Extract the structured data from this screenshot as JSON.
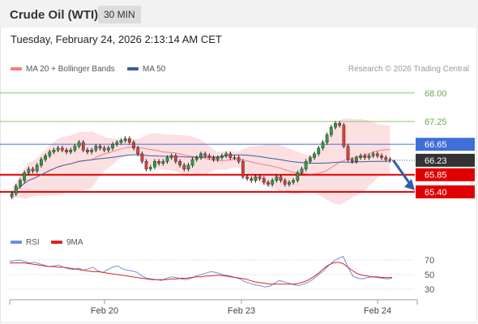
{
  "header": {
    "title": "Crude Oil (WTI)",
    "timeframe": "30 MIN",
    "timestamp": "Tuesday, February 24, 2026 2:13:14 AM CET"
  },
  "legend": {
    "ma20_label": "MA 20 + Bollinger Bands",
    "ma20_color": "#f08080",
    "ma50_label": "MA 50",
    "ma50_color": "#3b5f9e",
    "copyright": "Research © 2026 Trading Central"
  },
  "rsi_legend": {
    "rsi_label": "RSI",
    "rsi_color": "#6f8ed8",
    "ma9_label": "9MA",
    "ma9_color": "#e02020"
  },
  "chart_data": {
    "type": "candlestick",
    "instrument": "Crude Oil (WTI)",
    "timeframe": "30 MIN",
    "x_ticks": [
      "Feb 20",
      "Feb 23",
      "Feb 24"
    ],
    "ylim": [
      64.8,
      68.4
    ],
    "levels": [
      {
        "value": 68.0,
        "label": "68.00",
        "kind": "resistance",
        "color": "#8cc56a"
      },
      {
        "value": 67.25,
        "label": "67.25",
        "kind": "resistance",
        "color": "#8cc56a"
      },
      {
        "value": 66.65,
        "label": "66.65",
        "kind": "pivot",
        "color": "#3f6fd8"
      },
      {
        "value": 66.23,
        "label": "66.23",
        "kind": "last",
        "color": "#333333"
      },
      {
        "value": 65.85,
        "label": "65.85",
        "kind": "support",
        "color": "#e00000"
      },
      {
        "value": 65.4,
        "label": "65.40",
        "kind": "support",
        "color": "#e00000"
      }
    ],
    "closes": [
      65.35,
      65.55,
      65.7,
      65.9,
      66.0,
      65.95,
      66.1,
      66.25,
      66.35,
      66.45,
      66.5,
      66.55,
      66.5,
      66.45,
      66.5,
      66.6,
      66.7,
      66.5,
      66.45,
      66.5,
      66.6,
      66.55,
      66.5,
      66.55,
      66.65,
      66.7,
      66.75,
      66.8,
      66.7,
      66.55,
      66.4,
      66.2,
      66.0,
      66.05,
      66.2,
      66.15,
      66.2,
      66.3,
      66.35,
      66.2,
      66.1,
      66.0,
      66.1,
      66.25,
      66.3,
      66.4,
      66.35,
      66.3,
      66.25,
      66.3,
      66.35,
      66.4,
      66.3,
      66.3,
      66.2,
      65.8,
      65.75,
      65.7,
      65.8,
      65.75,
      65.65,
      65.6,
      65.7,
      65.8,
      65.7,
      65.6,
      65.65,
      65.7,
      65.9,
      66.0,
      66.2,
      66.3,
      66.4,
      66.55,
      66.7,
      66.9,
      67.1,
      67.2,
      67.15,
      66.6,
      66.25,
      66.2,
      66.3,
      66.35,
      66.3,
      66.35,
      66.4,
      66.35,
      66.3,
      66.25,
      66.23
    ],
    "rsi": {
      "ylim": [
        20,
        80
      ],
      "ticks": [
        70,
        50,
        30
      ],
      "rsi_values": [
        68,
        69,
        70,
        68,
        66,
        67,
        65,
        63,
        61,
        62,
        63,
        60,
        58,
        57,
        59,
        56,
        58,
        60,
        55,
        53,
        57,
        60,
        62,
        58,
        56,
        55,
        53,
        48,
        45,
        44,
        43,
        42,
        45,
        47,
        46,
        44,
        43,
        45,
        48,
        50,
        52,
        54,
        53,
        51,
        49,
        48,
        46,
        44,
        40,
        38,
        36,
        35,
        33,
        34,
        38,
        42,
        40,
        38,
        36,
        35,
        37,
        40,
        44,
        50,
        55,
        62,
        68,
        72,
        75,
        60,
        48,
        45,
        44,
        46,
        47,
        46,
        45,
        44,
        45
      ],
      "ma9_values": [
        66,
        66,
        66,
        66,
        65,
        64,
        63,
        62,
        61,
        61,
        60,
        60,
        59,
        58,
        57,
        56,
        55,
        54,
        54,
        53,
        52,
        51,
        50,
        49,
        48,
        47,
        46,
        45,
        44,
        43,
        43,
        43,
        43,
        44,
        44,
        45,
        45,
        46,
        47,
        47,
        48,
        48,
        49,
        49,
        48,
        47,
        46,
        45,
        44,
        42,
        40,
        39,
        38,
        37,
        37,
        37,
        37,
        37,
        37,
        38,
        40,
        43,
        47,
        52,
        58,
        63,
        66,
        67,
        65,
        60,
        55,
        51,
        49,
        48,
        47,
        47,
        46,
        46,
        46
      ]
    }
  }
}
